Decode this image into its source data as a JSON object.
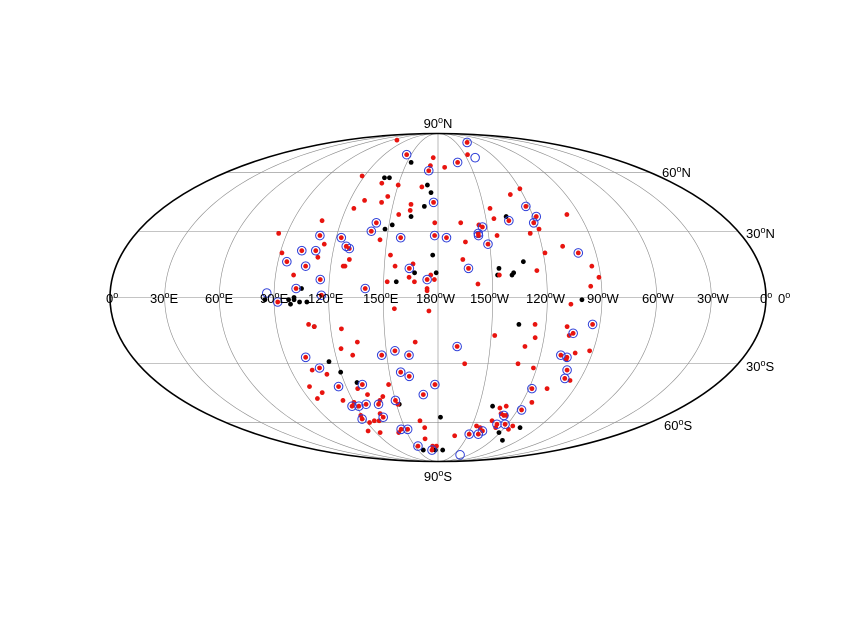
{
  "projection": "Mollweide (equal-area), full sky",
  "colors": {
    "black_dot": "#000000",
    "red_dot": "#e8140f",
    "blue_circle": "#2f3fd8"
  },
  "labels": {
    "top": {
      "main": "90",
      "sup": "o",
      "tail": "N"
    },
    "bottom": {
      "main": "90",
      "sup": "o",
      "tail": "S"
    },
    "lat_60n": {
      "main": "60",
      "sup": "o",
      "tail": "N"
    },
    "lat_30n": {
      "main": "30",
      "sup": "o",
      "tail": "N"
    },
    "lat_30s": {
      "main": "30",
      "sup": "o",
      "tail": "S"
    },
    "lat_60s": {
      "main": "60",
      "sup": "o",
      "tail": "S"
    },
    "lon_0_left": {
      "main": "0",
      "sup": "o",
      "tail": ""
    },
    "lon_30e": {
      "main": "30",
      "sup": "o",
      "tail": "E"
    },
    "lon_60e": {
      "main": "60",
      "sup": "o",
      "tail": "E"
    },
    "lon_90e": {
      "main": "90",
      "sup": "o",
      "tail": "E"
    },
    "lon_120e": {
      "main": "120",
      "sup": "o",
      "tail": "E"
    },
    "lon_150e": {
      "main": "150",
      "sup": "o",
      "tail": "E"
    },
    "lon_180w": {
      "main": "180",
      "sup": "o",
      "tail": "W"
    },
    "lon_150w": {
      "main": "150",
      "sup": "o",
      "tail": "W"
    },
    "lon_120w": {
      "main": "120",
      "sup": "o",
      "tail": "W"
    },
    "lon_90w": {
      "main": "90",
      "sup": "o",
      "tail": "W"
    },
    "lon_60w": {
      "main": "60",
      "sup": "o",
      "tail": "W"
    },
    "lon_30w": {
      "main": "30",
      "sup": "o",
      "tail": "W"
    },
    "lon_0_right": {
      "main": "0",
      "sup": "o",
      "tail": ""
    },
    "lat_0_right": {
      "main": "0",
      "sup": "o",
      "tail": ""
    }
  },
  "points": {
    "black": [
      [
        -26,
        66
      ],
      [
        -43,
        57
      ],
      [
        -39,
        57
      ],
      [
        -8,
        53
      ],
      [
        -5,
        49
      ],
      [
        -9,
        42
      ],
      [
        43,
        37
      ],
      [
        -17,
        37
      ],
      [
        -28,
        33
      ],
      [
        -32,
        31
      ],
      [
        -3,
        19
      ],
      [
        48,
        16
      ],
      [
        34,
        13
      ],
      [
        -1,
        11
      ],
      [
        -13,
        11
      ],
      [
        33,
        10
      ],
      [
        42,
        11
      ],
      [
        41,
        10
      ],
      [
        -23,
        7
      ],
      [
        -75,
        4
      ],
      [
        79,
        -1
      ],
      [
        -79,
        -1
      ],
      [
        -79,
        0
      ],
      [
        -82,
        -1
      ],
      [
        -76,
        -2
      ],
      [
        -72,
        -2
      ],
      [
        -81,
        -3
      ],
      [
        -69,
        -13
      ],
      [
        45,
        -12
      ],
      [
        -65,
        -29
      ],
      [
        -52,
        -39
      ],
      [
        -28,
        -50
      ],
      [
        2,
        -57
      ],
      [
        40,
        -51
      ],
      [
        -4,
        -78
      ],
      [
        7,
        -78
      ],
      [
        -22,
        -78
      ],
      [
        59,
        -66
      ],
      [
        74,
        -63
      ],
      [
        -60,
        -34
      ],
      [
        72,
        -71
      ],
      [
        -95,
        -1
      ]
    ],
    "red": [
      [
        -80,
        82
      ],
      [
        33,
        71
      ],
      [
        -5,
        69
      ],
      [
        6,
        63
      ],
      [
        -7,
        64
      ],
      [
        -62,
        58
      ],
      [
        -43,
        54
      ],
      [
        -30,
        53
      ],
      [
        -35,
        47
      ],
      [
        -38,
        44
      ],
      [
        -55,
        41
      ],
      [
        -18,
        40
      ],
      [
        -25,
        38
      ],
      [
        -72,
        35
      ],
      [
        34,
        41
      ],
      [
        35,
        36
      ],
      [
        -2,
        34
      ],
      [
        25,
        33
      ],
      [
        -95,
        29
      ],
      [
        -89,
        20
      ],
      [
        -68,
        18
      ],
      [
        14,
        17
      ],
      [
        -27,
        19
      ],
      [
        -50,
        17
      ],
      [
        -24,
        14
      ],
      [
        -14,
        15
      ],
      [
        -52,
        14
      ],
      [
        -53,
        14
      ],
      [
        55,
        12
      ],
      [
        34,
        10
      ],
      [
        -4,
        10
      ],
      [
        -2,
        8
      ],
      [
        -16,
        9
      ],
      [
        -13,
        7
      ],
      [
        -28,
        7
      ],
      [
        -6,
        4
      ],
      [
        -6,
        3
      ],
      [
        -24,
        -5
      ],
      [
        -5,
        -6
      ],
      [
        -56,
        -23
      ],
      [
        -50,
        -26
      ],
      [
        -32,
        -40
      ],
      [
        50,
        -22
      ],
      [
        55,
        -18
      ],
      [
        -72,
        -12
      ],
      [
        -69,
        -13
      ],
      [
        -54,
        -14
      ],
      [
        -46,
        -20
      ],
      [
        -13,
        -20
      ],
      [
        -69,
        -35
      ],
      [
        58,
        -32
      ],
      [
        48,
        -30
      ],
      [
        16,
        -30
      ],
      [
        -84,
        -41
      ],
      [
        -78,
        -44
      ],
      [
        -53,
        -42
      ],
      [
        -48,
        -45
      ],
      [
        -67,
        -48
      ],
      [
        -60,
        -49
      ],
      [
        -61,
        -56
      ],
      [
        -58,
        -60
      ],
      [
        -53,
        -59
      ],
      [
        -45,
        -55
      ],
      [
        -29,
        -50
      ],
      [
        -38,
        -46
      ],
      [
        -49,
        -59
      ],
      [
        -66,
        -65
      ],
      [
        -56,
        -66
      ],
      [
        -15,
        -59
      ],
      [
        -12,
        -63
      ],
      [
        -38,
        -66
      ],
      [
        -14,
        -70
      ],
      [
        -7,
        -75
      ],
      [
        -2,
        -75
      ],
      [
        17,
        -68
      ],
      [
        34,
        -62
      ],
      [
        45,
        -59
      ],
      [
        49,
        -55
      ],
      [
        50,
        -51
      ],
      [
        54,
        -56
      ],
      [
        46,
        -52
      ],
      [
        38,
        -63
      ],
      [
        -41,
        -48
      ],
      [
        67,
        -49
      ],
      [
        66,
        -62
      ],
      [
        65,
        -64
      ],
      [
        52,
        -63
      ],
      [
        74,
        -17
      ],
      [
        76,
        -28
      ],
      [
        80,
        -25
      ],
      [
        72,
        -42
      ],
      [
        84,
        -38
      ],
      [
        88,
        -24
      ],
      [
        72,
        -13
      ],
      [
        54,
        -12
      ],
      [
        61,
        31
      ],
      [
        55,
        29
      ],
      [
        35,
        28
      ],
      [
        61,
        20
      ],
      [
        73,
        -3
      ],
      [
        86,
        14
      ],
      [
        89,
        9
      ],
      [
        84,
        5
      ],
      [
        72,
        23
      ],
      [
        51,
        48
      ],
      [
        60,
        51
      ],
      [
        82,
        38
      ],
      [
        -12,
        52
      ],
      [
        -18,
        43
      ],
      [
        14,
        34
      ],
      [
        16,
        25
      ],
      [
        -34,
        26
      ],
      [
        -80,
        10
      ],
      [
        22,
        6
      ],
      [
        -66,
        24
      ],
      [
        -50,
        45
      ],
      [
        32,
        -17
      ],
      [
        -77,
        -33
      ],
      [
        -84,
        -47
      ]
    ],
    "red_ringed": [
      [
        -35,
        71
      ],
      [
        -8,
        61
      ],
      [
        19,
        66
      ],
      [
        49,
        80
      ],
      [
        -78,
        21
      ],
      [
        -57,
        27
      ],
      [
        -51,
        22
      ],
      [
        -40,
        30
      ],
      [
        -38,
        34
      ],
      [
        5,
        27
      ],
      [
        -3,
        44
      ],
      [
        24,
        29
      ],
      [
        29,
        24
      ],
      [
        44,
        35
      ],
      [
        27,
        32
      ],
      [
        17,
        13
      ],
      [
        -16,
        13
      ],
      [
        -22,
        27
      ],
      [
        -2,
        28
      ],
      [
        24,
        28
      ],
      [
        -6,
        8
      ],
      [
        -74,
        14
      ],
      [
        -70,
        21
      ],
      [
        -85,
        16
      ],
      [
        -64,
        1
      ],
      [
        -65,
        8
      ],
      [
        -78,
        4
      ],
      [
        -70,
        28
      ],
      [
        -53,
        23
      ],
      [
        62,
        37
      ],
      [
        58,
        42
      ],
      [
        59,
        34
      ],
      [
        80,
        20
      ],
      [
        -33,
        -26
      ],
      [
        -18,
        -36
      ],
      [
        -17,
        -26
      ],
      [
        -40,
        4
      ],
      [
        -88,
        -2
      ],
      [
        -65,
        -41
      ],
      [
        -49,
        -40
      ],
      [
        -52,
        -50
      ],
      [
        -43,
        -50
      ],
      [
        -62,
        -58
      ],
      [
        -58,
        -51
      ],
      [
        -30,
        -48
      ],
      [
        -28,
        -64
      ],
      [
        -44,
        -57
      ],
      [
        -2,
        -40
      ],
      [
        -34,
        -64
      ],
      [
        -26,
        -75
      ],
      [
        -9,
        -78
      ],
      [
        -78,
        -27
      ],
      [
        -72,
        -32
      ],
      [
        -63,
        -51
      ],
      [
        42,
        -65
      ],
      [
        40,
        -67
      ],
      [
        31,
        -67
      ],
      [
        -10,
        -45
      ],
      [
        -25,
        -24
      ],
      [
        -23,
        -34
      ],
      [
        11,
        -22
      ],
      [
        86,
        -12
      ],
      [
        76,
        -16
      ],
      [
        76,
        -27
      ],
      [
        79,
        -33
      ],
      [
        80,
        -37
      ],
      [
        63,
        -53
      ],
      [
        58,
        -61
      ],
      [
        51,
        -61
      ],
      [
        52,
        -56
      ],
      [
        72,
        -26
      ],
      [
        62,
        -42
      ]
    ],
    "blue_only": [
      [
        -94,
        2
      ],
      [
        39,
        69
      ],
      [
        43,
        -82
      ]
    ]
  }
}
